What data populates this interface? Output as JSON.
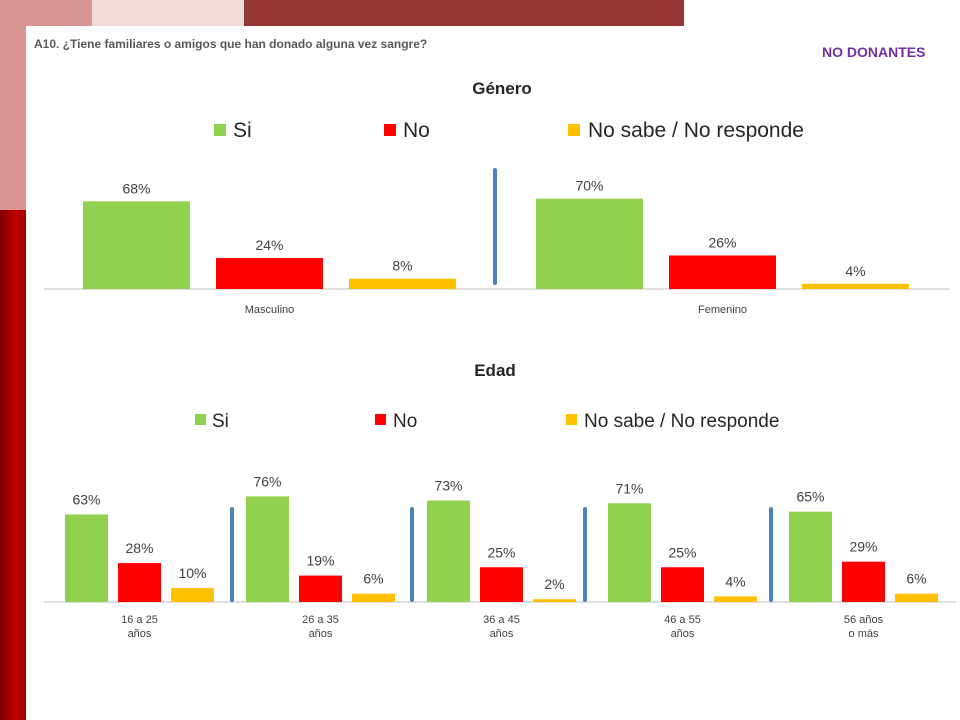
{
  "header": {
    "question": "A10. ¿Tiene familiares o amigos que han donado alguna vez sangre?",
    "tag": "NO DONANTES"
  },
  "colors": {
    "si": "#92d050",
    "no": "#ff0000",
    "ns": "#ffc000",
    "separator": "#4f81bd"
  },
  "chart_data": [
    {
      "type": "bar",
      "title": "Género",
      "categories": [
        "Masculino",
        "Femenino"
      ],
      "series": [
        {
          "name": "Si",
          "values": [
            68,
            70
          ]
        },
        {
          "name": "No",
          "values": [
            24,
            26
          ]
        },
        {
          "name": "No sabe / No responde",
          "values": [
            8,
            4
          ]
        }
      ],
      "data_labels": [
        [
          "68%",
          "24%",
          "8%"
        ],
        [
          "70%",
          "26%",
          "4%"
        ]
      ],
      "legend": "top"
    },
    {
      "type": "bar",
      "title": "Edad",
      "categories": [
        "16 a 25\naños",
        "26 a 35\naños",
        "36 a 45\naños",
        "46 a 55\naños",
        "56 años\no más"
      ],
      "series": [
        {
          "name": "Si",
          "values": [
            63,
            76,
            73,
            71,
            65
          ]
        },
        {
          "name": "No",
          "values": [
            28,
            19,
            25,
            25,
            29
          ]
        },
        {
          "name": "No sabe / No responde",
          "values": [
            10,
            6,
            2,
            4,
            6
          ]
        }
      ],
      "data_labels": [
        [
          "63%",
          "28%",
          "10%"
        ],
        [
          "76%",
          "19%",
          "6%"
        ],
        [
          "73%",
          "25%",
          "2%"
        ],
        [
          "71%",
          "25%",
          "4%"
        ],
        [
          "65%",
          "29%",
          "6%"
        ]
      ],
      "legend": "top"
    }
  ]
}
